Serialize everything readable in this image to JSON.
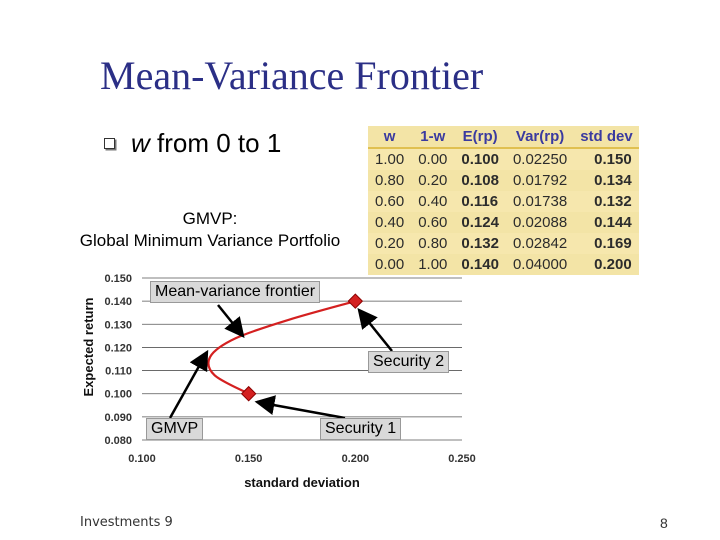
{
  "title": "Mean-Variance Frontier",
  "bullet": {
    "italic": "w",
    "text": " from 0 to 1"
  },
  "gmvp_def": {
    "line1": "GMVP:",
    "line2": "Global Minimum Variance Portfolio"
  },
  "table": {
    "headers": [
      "w",
      "1-w",
      "E(rp)",
      "Var(rp)",
      "std dev"
    ],
    "rows": [
      [
        "1.00",
        "0.00",
        "0.100",
        "0.02250",
        "0.150"
      ],
      [
        "0.80",
        "0.20",
        "0.108",
        "0.01792",
        "0.134"
      ],
      [
        "0.60",
        "0.40",
        "0.116",
        "0.01738",
        "0.132"
      ],
      [
        "0.40",
        "0.60",
        "0.124",
        "0.02088",
        "0.144"
      ],
      [
        "0.20",
        "0.80",
        "0.132",
        "0.02842",
        "0.169"
      ],
      [
        "0.00",
        "1.00",
        "0.140",
        "0.04000",
        "0.200"
      ]
    ]
  },
  "annotations": {
    "frontier": "Mean-variance frontier",
    "security2": "Security 2",
    "gmvp": "GMVP",
    "security1": "Security 1"
  },
  "footer": {
    "left": "Investments 9",
    "right": "8"
  },
  "chart_data": {
    "type": "line",
    "xlabel": "standard deviation",
    "ylabel": "Expected return",
    "xlim": [
      0.1,
      0.25
    ],
    "ylim": [
      0.08,
      0.15
    ],
    "x_ticks": [
      "0.100",
      "0.150",
      "0.200",
      "0.250"
    ],
    "y_ticks": [
      "0.080",
      "0.090",
      "0.100",
      "0.110",
      "0.120",
      "0.130",
      "0.140",
      "0.150"
    ],
    "grid": true,
    "series": [
      {
        "x": [
          0.15,
          0.134,
          0.132,
          0.144,
          0.169,
          0.2
        ],
        "y": [
          0.1,
          0.108,
          0.116,
          0.124,
          0.132,
          0.14
        ],
        "color": "#d42020"
      }
    ],
    "markers": [
      {
        "x": 0.15,
        "y": 0.1
      },
      {
        "x": 0.2,
        "y": 0.14
      }
    ]
  }
}
